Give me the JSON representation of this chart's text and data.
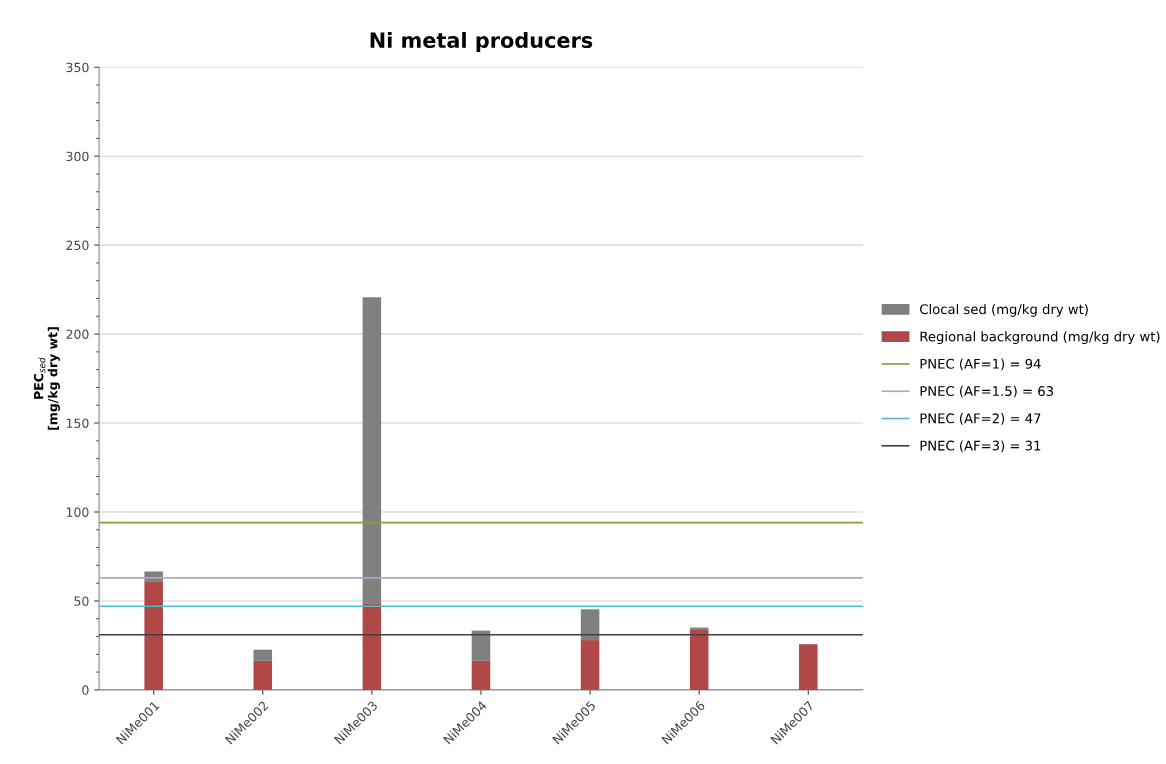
{
  "chart_data": {
    "type": "bar",
    "title": "Ni metal producers",
    "ylabel": "PEC$_{sed}$\n[mg/kg dry wt]",
    "categories": [
      "NiMe001",
      "NiMe002",
      "NiMe003",
      "NiMe004",
      "NiMe005",
      "NiMe006",
      "NiMe007"
    ],
    "stacked": true,
    "series": [
      {
        "name": "Regional background (mg/kg dry wt)",
        "color": "#b04848",
        "values": [
          61,
          16.3,
          48.7,
          16.3,
          28,
          33.7,
          25.7
        ]
      },
      {
        "name": "Clocal sed (mg/kg dry wt)",
        "color": "#808080",
        "values": [
          5.5,
          6.3,
          172,
          17,
          17.3,
          1.3,
          0
        ]
      }
    ],
    "ref_lines": [
      {
        "axis": "y",
        "value": 94,
        "label": "PNEC (AF=1) = 94",
        "color": "#8f9a3c"
      },
      {
        "axis": "y",
        "value": 63,
        "label": "PNEC (AF=1.5) = 63",
        "color": "#a9a9c8"
      },
      {
        "axis": "y",
        "value": 47,
        "label": "PNEC (AF=2) = 47",
        "color": "#4bbdcc"
      },
      {
        "axis": "y",
        "value": 31,
        "label": "PNEC (AF=3) = 31",
        "color": "#404040"
      }
    ],
    "ylim": [
      0,
      350
    ],
    "yticks": [
      0,
      50,
      100,
      150,
      200,
      250,
      300,
      350
    ],
    "grid": "y",
    "legend": "right"
  }
}
